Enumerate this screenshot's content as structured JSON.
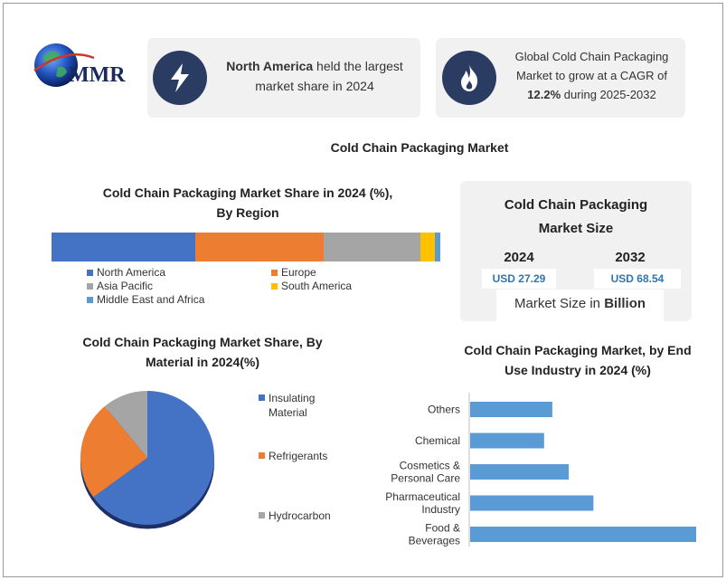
{
  "brand": {
    "logo_text": "MMR"
  },
  "highlights": [
    {
      "icon": "lightning-icon",
      "text_bold": "North America",
      "text_rest": " held the largest market share in 2024"
    },
    {
      "icon": "flame-icon",
      "text_before": "Global Cold Chain Packaging Market to grow at a CAGR of ",
      "text_bold": "12.2%",
      "text_after": " during 2025-2032"
    }
  ],
  "main_title": "Cold Chain Packaging Market",
  "market_size": {
    "title_line1": "Cold Chain Packaging",
    "title_line2": "Market Size",
    "year1": "2024",
    "value1": "USD 27.29",
    "year2": "2032",
    "value2": "USD 68.54",
    "unit_text": "Market Size in ",
    "unit_bold": "Billion"
  },
  "chart_data": [
    {
      "type": "bar",
      "orientation": "horizontal-stacked",
      "title_line1": "Cold Chain Packaging Market Share in 2024 (%),",
      "title_line2": "By Region",
      "legend_position": "bottom",
      "series": [
        {
          "name": "North America",
          "value": 37,
          "color": "#4472c4"
        },
        {
          "name": "Europe",
          "value": 33,
          "color": "#ed7d31"
        },
        {
          "name": "Asia Pacific",
          "value": 25,
          "color": "#a5a5a5"
        },
        {
          "name": "South America",
          "value": 3.5,
          "color": "#ffc000"
        },
        {
          "name": "Middle East and Africa",
          "value": 1.5,
          "color": "#5b9bd5"
        }
      ]
    },
    {
      "type": "pie",
      "title_line1": "Cold Chain Packaging Market Share, By",
      "title_line2": "Material in 2024(%)",
      "legend_position": "right",
      "slices": [
        {
          "name": "Insulating Material",
          "label_line1": "Insulating",
          "label_line2": "Material",
          "value": 65,
          "color": "#4472c4"
        },
        {
          "name": "Refrigerants",
          "label_line1": "Refrigerants",
          "label_line2": "",
          "value": 24,
          "color": "#ed7d31"
        },
        {
          "name": "Hydrocarbon",
          "label_line1": "Hydrocarbon",
          "label_line2": "",
          "value": 11,
          "color": "#a5a5a5"
        }
      ]
    },
    {
      "type": "bar",
      "orientation": "horizontal",
      "title_line1": "Cold Chain Packaging Market, by End",
      "title_line2": "Use Industry in 2024 (%)",
      "color": "#5b9bd5",
      "categories": [
        {
          "line1": "Others",
          "line2": "",
          "value": 20
        },
        {
          "line1": "Chemical",
          "line2": "",
          "value": 18
        },
        {
          "line1": "Cosmetics &",
          "line2": "Personal Care",
          "value": 24
        },
        {
          "line1": "Pharmaceutical",
          "line2": "Industry",
          "value": 30
        },
        {
          "line1": "Food &",
          "line2": "Beverages",
          "value": 55
        }
      ],
      "xlim": [
        0,
        55
      ]
    }
  ]
}
